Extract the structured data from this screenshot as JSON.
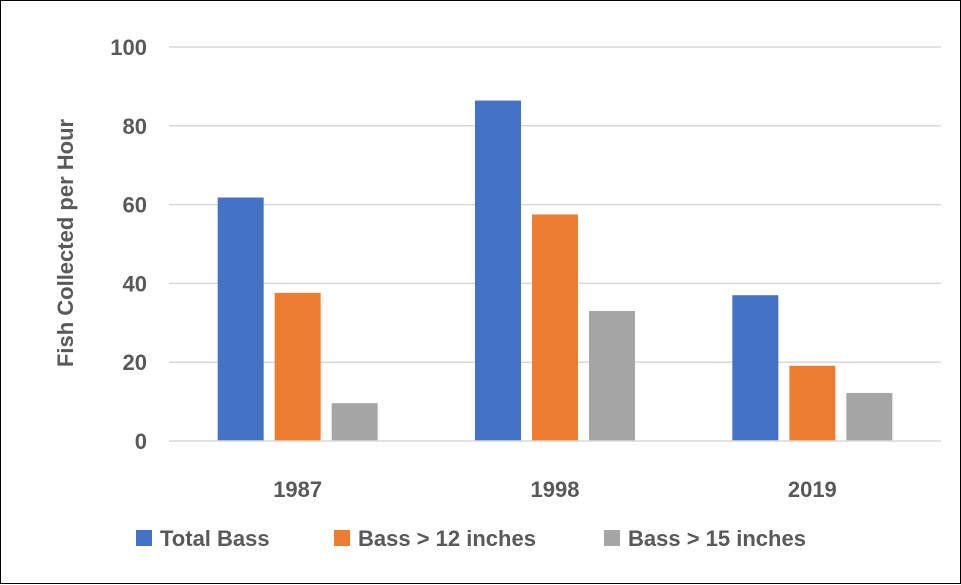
{
  "chart_data": {
    "type": "bar",
    "categories": [
      "1987",
      "1998",
      "2019"
    ],
    "series": [
      {
        "name": "Total Bass",
        "values": [
          61.8,
          86.4,
          37.0
        ],
        "color": "#4472C4"
      },
      {
        "name": "Bass > 12 inches",
        "values": [
          37.6,
          57.5,
          19.1
        ],
        "color": "#ED7D31"
      },
      {
        "name": "Bass > 15 inches",
        "values": [
          9.6,
          33.0,
          12.2
        ],
        "color": "#A5A5A5"
      }
    ],
    "title": "",
    "xlabel": "",
    "ylabel": "Fish Collected per Hour",
    "ylim": [
      0,
      100
    ],
    "yticks": [
      0,
      20,
      40,
      60,
      80,
      100
    ],
    "grid": true,
    "legend": "bottom"
  }
}
